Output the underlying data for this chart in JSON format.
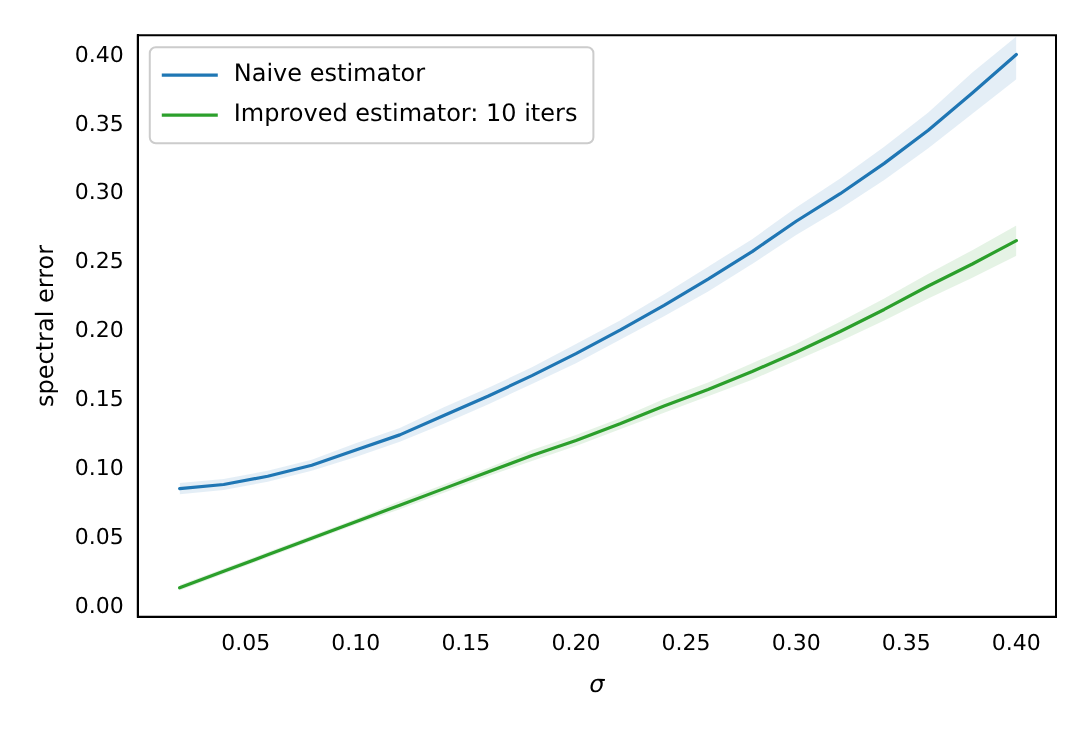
{
  "chart_data": {
    "type": "line",
    "xlabel": "σ",
    "ylabel": "spectral error",
    "x": [
      0.02,
      0.04,
      0.06,
      0.08,
      0.1,
      0.12,
      0.14,
      0.16,
      0.18,
      0.2,
      0.22,
      0.24,
      0.26,
      0.28,
      0.3,
      0.32,
      0.34,
      0.36,
      0.38,
      0.4
    ],
    "series": [
      {
        "name": "Naive estimator",
        "color": "#1f77b4",
        "values": [
          0.086,
          0.089,
          0.095,
          0.103,
          0.114,
          0.125,
          0.139,
          0.153,
          0.168,
          0.184,
          0.201,
          0.219,
          0.238,
          0.258,
          0.28,
          0.3,
          0.322,
          0.346,
          0.373,
          0.401
        ],
        "lower": [
          0.082,
          0.085,
          0.091,
          0.099,
          0.109,
          0.12,
          0.133,
          0.147,
          0.162,
          0.177,
          0.194,
          0.211,
          0.229,
          0.249,
          0.27,
          0.289,
          0.31,
          0.333,
          0.358,
          0.383
        ],
        "upper": [
          0.09,
          0.093,
          0.099,
          0.107,
          0.119,
          0.13,
          0.145,
          0.159,
          0.174,
          0.191,
          0.208,
          0.227,
          0.247,
          0.267,
          0.29,
          0.311,
          0.334,
          0.359,
          0.388,
          0.414
        ]
      },
      {
        "name": "Improved estimator: 10 iters",
        "color": "#2ca02c",
        "values": [
          0.014,
          0.026,
          0.038,
          0.05,
          0.062,
          0.074,
          0.086,
          0.098,
          0.11,
          0.121,
          0.133,
          0.146,
          0.158,
          0.171,
          0.185,
          0.2,
          0.216,
          0.233,
          0.249,
          0.266
        ],
        "lower": [
          0.012,
          0.024,
          0.036,
          0.048,
          0.06,
          0.071,
          0.083,
          0.095,
          0.106,
          0.117,
          0.129,
          0.141,
          0.153,
          0.165,
          0.179,
          0.193,
          0.208,
          0.224,
          0.239,
          0.255
        ],
        "upper": [
          0.016,
          0.028,
          0.04,
          0.052,
          0.064,
          0.077,
          0.089,
          0.101,
          0.114,
          0.125,
          0.137,
          0.151,
          0.163,
          0.177,
          0.191,
          0.207,
          0.224,
          0.242,
          0.259,
          0.277
        ]
      }
    ],
    "xlim": [
      0.001,
      0.418
    ],
    "ylim": [
      -0.007,
      0.415
    ],
    "xticks": [
      {
        "value": 0.05,
        "label": "0.05"
      },
      {
        "value": 0.1,
        "label": "0.10"
      },
      {
        "value": 0.15,
        "label": "0.15"
      },
      {
        "value": 0.2,
        "label": "0.20"
      },
      {
        "value": 0.25,
        "label": "0.25"
      },
      {
        "value": 0.3,
        "label": "0.30"
      },
      {
        "value": 0.35,
        "label": "0.35"
      },
      {
        "value": 0.4,
        "label": "0.40"
      }
    ],
    "yticks": [
      {
        "value": 0,
        "label": "0.00"
      },
      {
        "value": 0.05,
        "label": "0.05"
      },
      {
        "value": 0.1,
        "label": "0.10"
      },
      {
        "value": 0.15,
        "label": "0.15"
      },
      {
        "value": 0.2,
        "label": "0.20"
      },
      {
        "value": 0.25,
        "label": "0.25"
      },
      {
        "value": 0.3,
        "label": "0.30"
      },
      {
        "value": 0.35,
        "label": "0.35"
      },
      {
        "value": 0.4,
        "label": "0.40"
      }
    ],
    "grid": false,
    "legend": "top left",
    "marker": "none",
    "line_style": "solid"
  }
}
